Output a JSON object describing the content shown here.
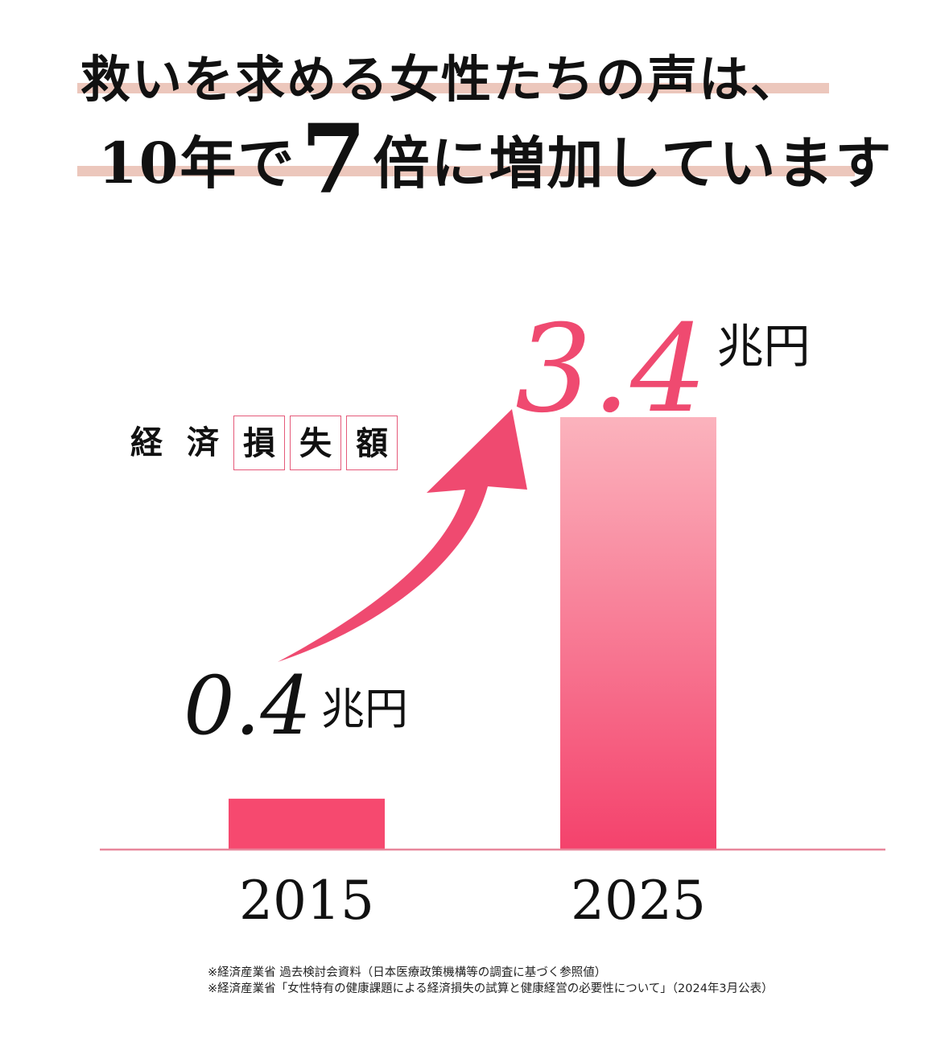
{
  "headline": {
    "line1": "救いを求める女性たちの声は、",
    "line2_prefix": "10年で",
    "line2_big": "7",
    "line2_suffix": "倍に増加しています"
  },
  "metric_label_chars": [
    "経",
    "済",
    "損",
    "失",
    "額"
  ],
  "notes": [
    "※経済産業省 過去検討会資料（日本医療政策機構等の調査に基づく参照値）",
    "※経済産業省「女性特有の健康課題による経済損失の試算と健康経営の必要性について」（2024年3月公表）"
  ],
  "colors": {
    "accent": "#ef4a70",
    "bar_solid": "#f6496f",
    "bar_gradient_top": "#fbb3bd",
    "bar_gradient_bottom": "#f4426c",
    "baseline": "#e8879c",
    "headline_underline": "#ecc7bc"
  },
  "chart_data": {
    "type": "bar",
    "categories": [
      "2015",
      "2025"
    ],
    "values": [
      0.4,
      3.4
    ],
    "value_labels": [
      "0.4",
      "3.4"
    ],
    "unit": "兆円",
    "title": "",
    "xlabel": "",
    "ylabel": "",
    "ylim": [
      0,
      3.4
    ],
    "grid": false,
    "annotation": "growth arrow from 2015 to 2025"
  }
}
